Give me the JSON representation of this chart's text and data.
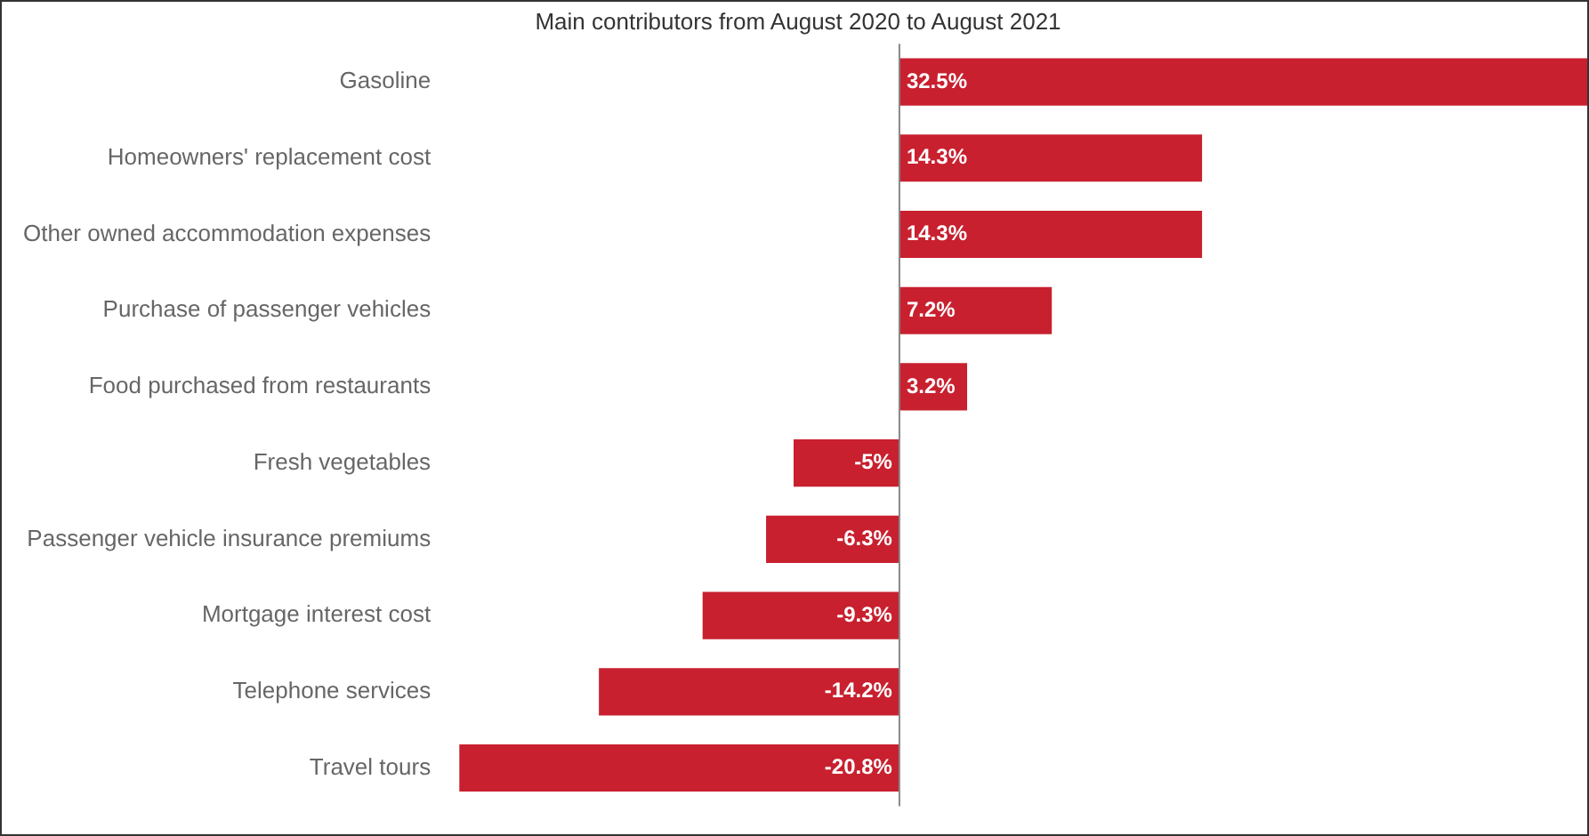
{
  "chart_data": {
    "type": "bar",
    "orientation": "horizontal",
    "title": "Main contributors from August 2020 to August 2021",
    "categories": [
      "Gasoline",
      "Homeowners' replacement cost",
      "Other owned accommodation expenses",
      "Purchase of passenger vehicles",
      "Food purchased from restaurants",
      "Fresh vegetables",
      "Passenger vehicle insurance premiums",
      "Mortgage interest cost",
      "Telephone services",
      "Travel tours"
    ],
    "values": [
      32.5,
      14.3,
      14.3,
      7.2,
      3.2,
      -5,
      -6.3,
      -9.3,
      -14.2,
      -20.8
    ],
    "value_labels": [
      "32.5%",
      "14.3%",
      "14.3%",
      "7.2%",
      "3.2%",
      "-5%",
      "-6.3%",
      "-9.3%",
      "-14.2%",
      "-20.8%"
    ],
    "color": "#c8202f",
    "xlim": [
      -20.8,
      32.5
    ],
    "tick_labels": "y",
    "grid": false,
    "legend": false
  }
}
